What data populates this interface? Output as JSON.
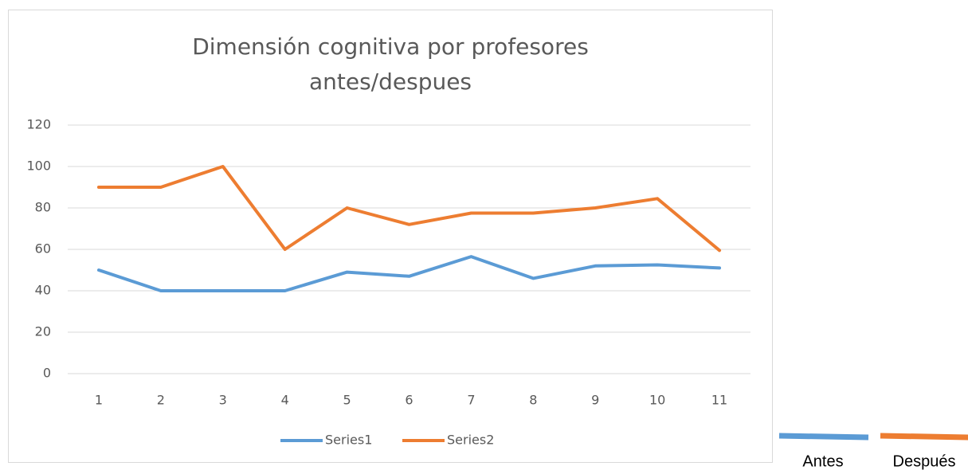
{
  "chart_data": {
    "type": "line",
    "title_lines": [
      "Dimensión cognitiva por profesores",
      "antes/despues"
    ],
    "categories": [
      1,
      2,
      3,
      4,
      5,
      6,
      7,
      8,
      9,
      10,
      11
    ],
    "series": [
      {
        "name": "Series1",
        "color": "#5b9bd5",
        "values": [
          50,
          40,
          40,
          40,
          49,
          47,
          56.5,
          46,
          52,
          52.5,
          51
        ]
      },
      {
        "name": "Series2",
        "color": "#ed7d31",
        "values": [
          90,
          90,
          100,
          60,
          80,
          72,
          77.5,
          77.5,
          80,
          84.5,
          59.5
        ]
      }
    ],
    "ylim": [
      0,
      120
    ],
    "yticks": [
      0,
      20,
      40,
      60,
      80,
      100,
      120
    ],
    "grid": true,
    "legend": "bottom",
    "extra_legend": [
      {
        "label": "Antes",
        "color": "#5b9bd5"
      },
      {
        "label": "Después",
        "color": "#ed7d31"
      }
    ]
  }
}
